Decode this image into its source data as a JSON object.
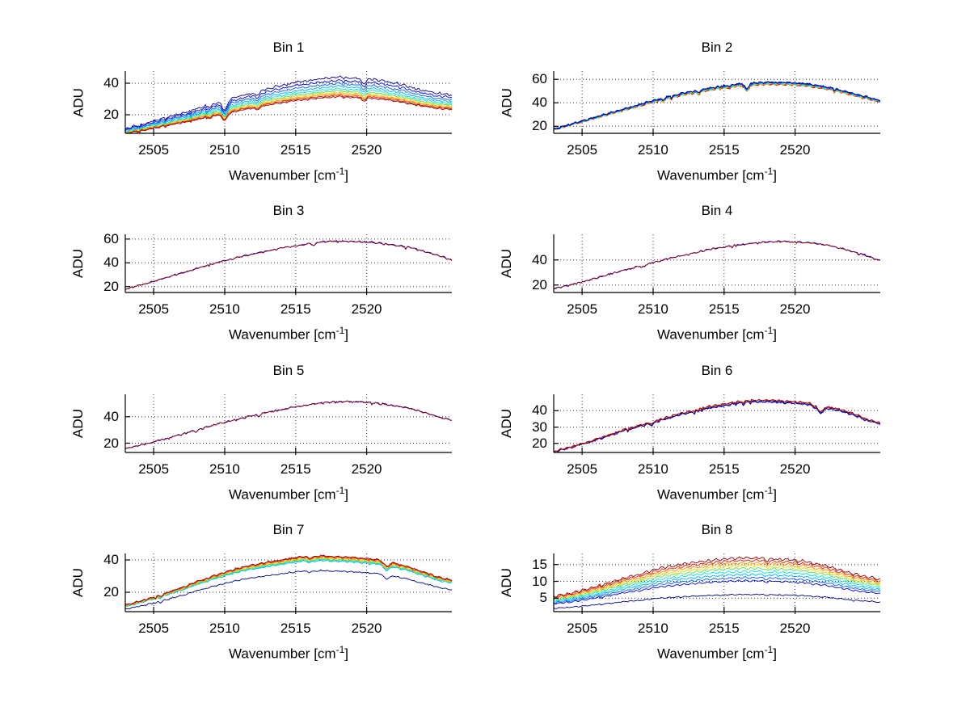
{
  "figure": {
    "background": "#ffffff",
    "grid_layout": {
      "rows": 4,
      "cols": 2
    },
    "grid_style": "dotted black gridlines at every tick, box off (left and bottom spines only)",
    "line_palette_jet": [
      "#00008F",
      "#0000EA",
      "#0060FF",
      "#00B0FF",
      "#00E0E0",
      "#55DD55",
      "#EED500",
      "#FF9000",
      "#F01800",
      "#900000"
    ]
  },
  "labels": {
    "ylabel": "ADU",
    "xlabel_prefix": "Wavenumber [cm",
    "xlabel_sup": "-1",
    "xlabel_suffix": "]"
  },
  "x_values": [
    2503,
    2504,
    2505,
    2506,
    2507,
    2508,
    2509,
    2510,
    2511,
    2512,
    2513,
    2514,
    2515,
    2516,
    2517,
    2518,
    2519,
    2520,
    2521,
    2522,
    2523,
    2524,
    2525,
    2526
  ],
  "chart_data": [
    {
      "type": "line",
      "title": "Bin 1",
      "xlabel": "Wavenumber [cm^-1]",
      "ylabel": "ADU",
      "xlim": [
        2503,
        2526
      ],
      "ylim": [
        8.2,
        47.7
      ],
      "xticks": [
        2505,
        2510,
        2515,
        2520
      ],
      "yticks": [
        20,
        40
      ],
      "base_adu": [
        11,
        13.5,
        16,
        18.5,
        21,
        23.5,
        26.5,
        29,
        31.5,
        34,
        36.5,
        38.5,
        40.5,
        42,
        43,
        44,
        43.5,
        43,
        42,
        40,
        38,
        35.5,
        33.5,
        32.5
      ],
      "noise_amp": 0.8,
      "ripple": {
        "period": 0.5,
        "amp": 0.35
      },
      "dips": [
        {
          "x": 2510,
          "depth": 6,
          "width": 0.18
        },
        {
          "x": 2512.3,
          "depth": 2.5,
          "width": 0.15
        },
        {
          "x": 2519.8,
          "depth": 3,
          "width": 0.15
        },
        {
          "x": 2509,
          "depth": 1.5,
          "width": 0.12
        }
      ],
      "series": [
        {
          "name": "trace-01",
          "color": "#00008F",
          "scale": 1.0
        },
        {
          "name": "trace-02",
          "color": "#0000EA",
          "scale": 0.95
        },
        {
          "name": "trace-03",
          "color": "#0060FF",
          "scale": 0.905
        },
        {
          "name": "trace-04",
          "color": "#00B0FF",
          "scale": 0.865
        },
        {
          "name": "trace-05",
          "color": "#00E0E0",
          "scale": 0.83
        },
        {
          "name": "trace-06",
          "color": "#55DD55",
          "scale": 0.8
        },
        {
          "name": "trace-07",
          "color": "#EED500",
          "scale": 0.775
        },
        {
          "name": "trace-08",
          "color": "#FF9000",
          "scale": 0.755
        },
        {
          "name": "trace-09",
          "color": "#F01800",
          "scale": 0.735
        },
        {
          "name": "trace-10",
          "color": "#900000",
          "scale": 0.715
        }
      ]
    },
    {
      "type": "line",
      "title": "Bin 2",
      "xlabel": "Wavenumber [cm^-1]",
      "ylabel": "ADU",
      "xlim": [
        2503,
        2526
      ],
      "ylim": [
        14,
        67
      ],
      "xticks": [
        2505,
        2510,
        2515,
        2520
      ],
      "yticks": [
        20,
        40,
        60
      ],
      "base_adu": [
        18,
        21,
        24.5,
        28,
        31.5,
        35,
        38.5,
        42,
        45,
        48,
        50.5,
        52.5,
        54.5,
        56,
        57,
        57.5,
        57.5,
        57,
        56,
        54,
        51.5,
        48.5,
        45,
        42
      ],
      "noise_amp": 0.9,
      "ripple": {
        "period": 0.5,
        "amp": 0.4
      },
      "dips": [
        {
          "x": 2516.6,
          "depth": 5,
          "width": 0.12
        },
        {
          "x": 2513.2,
          "depth": 2,
          "width": 0.12
        },
        {
          "x": 2510.7,
          "depth": 1.5,
          "width": 0.1
        }
      ],
      "series": [
        {
          "name": "trace-01",
          "color": "#900000",
          "scale": 0.965
        },
        {
          "name": "trace-02",
          "color": "#F01800",
          "scale": 0.968
        },
        {
          "name": "trace-03",
          "color": "#FF9000",
          "scale": 0.972
        },
        {
          "name": "trace-04",
          "color": "#EED500",
          "scale": 0.976
        },
        {
          "name": "trace-05",
          "color": "#55DD55",
          "scale": 0.98
        },
        {
          "name": "trace-06",
          "color": "#00E0E0",
          "scale": 0.984
        },
        {
          "name": "trace-07",
          "color": "#00B0FF",
          "scale": 0.988
        },
        {
          "name": "trace-08",
          "color": "#0060FF",
          "scale": 0.992
        },
        {
          "name": "trace-09",
          "color": "#0000EA",
          "scale": 0.996
        },
        {
          "name": "trace-10",
          "color": "#00008F",
          "scale": 1.0
        }
      ]
    },
    {
      "type": "line",
      "title": "Bin 3",
      "xlabel": "Wavenumber [cm^-1]",
      "ylabel": "ADU",
      "xlim": [
        2503,
        2526
      ],
      "ylim": [
        15,
        64
      ],
      "xticks": [
        2505,
        2510,
        2515,
        2520
      ],
      "yticks": [
        20,
        40,
        60
      ],
      "base_adu": [
        18,
        21,
        24.5,
        28,
        31.5,
        35,
        38.5,
        42,
        45,
        47.5,
        50,
        52.5,
        54.5,
        56.5,
        58,
        58.5,
        58,
        57.5,
        56.5,
        55,
        53,
        50,
        46.5,
        42.5
      ],
      "noise_amp": 0.8,
      "ripple": {
        "period": 0.5,
        "amp": 0.3
      },
      "dips": [
        {
          "x": 2516.3,
          "depth": 2,
          "width": 0.12
        },
        {
          "x": 2510.5,
          "depth": 1.2,
          "width": 0.1
        }
      ],
      "series": [
        {
          "name": "trace-01",
          "color": "#0000EA",
          "scale": 1.0
        },
        {
          "name": "trace-02",
          "color": "#900000",
          "scale": 0.996
        }
      ]
    },
    {
      "type": "line",
      "title": "Bin 4",
      "xlabel": "Wavenumber [cm^-1]",
      "ylabel": "ADU",
      "xlim": [
        2503,
        2526
      ],
      "ylim": [
        14,
        60.5
      ],
      "xticks": [
        2505,
        2510,
        2515,
        2520
      ],
      "yticks": [
        20,
        40
      ],
      "base_adu": [
        17,
        19.5,
        22.5,
        25.5,
        29,
        32,
        35,
        38,
        41,
        43.5,
        46,
        48.5,
        50.5,
        52,
        53.5,
        54.5,
        55,
        54.5,
        54,
        52.5,
        50,
        47,
        43.5,
        39.5
      ],
      "noise_amp": 0.8,
      "ripple": {
        "period": 0.5,
        "amp": 0.3
      },
      "dips": [
        {
          "x": 2509.3,
          "depth": 1.5,
          "width": 0.12
        }
      ],
      "series": [
        {
          "name": "trace-01",
          "color": "#0000EA",
          "scale": 1.0
        },
        {
          "name": "trace-02",
          "color": "#900000",
          "scale": 0.997
        }
      ]
    },
    {
      "type": "line",
      "title": "Bin 5",
      "xlabel": "Wavenumber [cm^-1]",
      "ylabel": "ADU",
      "xlim": [
        2503,
        2526
      ],
      "ylim": [
        13,
        57
      ],
      "xticks": [
        2505,
        2510,
        2515,
        2520
      ],
      "yticks": [
        20,
        40
      ],
      "base_adu": [
        16,
        18.5,
        21,
        24,
        27,
        30,
        33,
        36,
        38.5,
        41,
        43.5,
        45.5,
        47.5,
        49.5,
        51,
        51.5,
        51.5,
        51,
        50,
        48.5,
        46.5,
        43.5,
        40,
        37.5
      ],
      "noise_amp": 0.7,
      "ripple": {
        "period": 0.5,
        "amp": 0.3
      },
      "dips": [
        {
          "x": 2512.4,
          "depth": 1.5,
          "width": 0.12
        },
        {
          "x": 2508,
          "depth": 1.2,
          "width": 0.1
        }
      ],
      "series": [
        {
          "name": "trace-01",
          "color": "#0000EA",
          "scale": 1.0
        },
        {
          "name": "trace-02",
          "color": "#900000",
          "scale": 0.997
        }
      ]
    },
    {
      "type": "line",
      "title": "Bin 6",
      "xlabel": "Wavenumber [cm^-1]",
      "ylabel": "ADU",
      "xlim": [
        2503,
        2526
      ],
      "ylim": [
        14.5,
        50
      ],
      "xticks": [
        2505,
        2510,
        2515,
        2520
      ],
      "yticks": [
        20,
        30,
        40
      ],
      "base_adu": [
        15,
        17.5,
        20,
        22.5,
        25.5,
        28.5,
        31,
        33.5,
        36,
        38.5,
        40.5,
        42.5,
        44,
        45.5,
        46.5,
        46.5,
        46,
        45.5,
        44.5,
        43,
        41,
        38.5,
        35,
        32.5
      ],
      "noise_amp": 0.7,
      "ripple": {
        "period": 0.5,
        "amp": 0.3
      },
      "dips": [
        {
          "x": 2521.8,
          "depth": 4,
          "width": 0.2
        },
        {
          "x": 2509.9,
          "depth": 1.5,
          "width": 0.12
        }
      ],
      "series": [
        {
          "name": "trace-01",
          "color": "#0000EA",
          "scale": 0.975
        },
        {
          "name": "trace-02",
          "color": "#00008F",
          "scale": 0.982
        },
        {
          "name": "trace-03",
          "color": "#F01800",
          "scale": 0.998
        },
        {
          "name": "trace-04",
          "color": "#900000",
          "scale": 1.0
        }
      ]
    },
    {
      "type": "line",
      "title": "Bin 7",
      "xlabel": "Wavenumber [cm^-1]",
      "ylabel": "ADU",
      "xlim": [
        2503,
        2526
      ],
      "ylim": [
        8,
        44
      ],
      "xticks": [
        2505,
        2510,
        2515,
        2520
      ],
      "yticks": [
        20,
        40
      ],
      "base_adu": [
        12,
        14.5,
        17,
        20,
        23,
        26.5,
        29.5,
        32.5,
        35,
        37,
        38.5,
        40,
        41.5,
        42.5,
        42.5,
        42,
        41.5,
        41,
        40,
        38,
        35.5,
        32.5,
        29.5,
        27.5
      ],
      "noise_amp": 0.6,
      "ripple": {
        "period": 0.55,
        "amp": 0.3
      },
      "dips": [
        {
          "x": 2521.4,
          "depth": 3,
          "width": 0.2
        },
        {
          "x": 2516,
          "depth": 1.5,
          "width": 0.12
        },
        {
          "x": 2505.5,
          "depth": 1,
          "width": 0.1
        }
      ],
      "series": [
        {
          "name": "trace-01",
          "color": "#00008F",
          "scale": 0.785
        },
        {
          "name": "trace-02",
          "color": "#00B0FF",
          "scale": 0.93
        },
        {
          "name": "trace-03",
          "color": "#00E0E0",
          "scale": 0.942
        },
        {
          "name": "trace-04",
          "color": "#55DD55",
          "scale": 0.954
        },
        {
          "name": "trace-05",
          "color": "#EED500",
          "scale": 0.966
        },
        {
          "name": "trace-06",
          "color": "#FF9000",
          "scale": 0.978
        },
        {
          "name": "trace-07",
          "color": "#F01800",
          "scale": 0.99
        },
        {
          "name": "trace-08",
          "color": "#900000",
          "scale": 1.0
        }
      ]
    },
    {
      "type": "line",
      "title": "Bin 8",
      "xlabel": "Wavenumber [cm^-1]",
      "ylabel": "ADU",
      "xlim": [
        2503,
        2526
      ],
      "ylim": [
        1,
        18.3
      ],
      "xticks": [
        2505,
        2510,
        2515,
        2520
      ],
      "yticks": [
        5,
        10,
        15
      ],
      "base_adu": [
        5.5,
        6.3,
        7.3,
        8.4,
        9.7,
        11,
        12.3,
        13.4,
        14.3,
        15,
        15.7,
        16.2,
        16.6,
        16.9,
        17,
        16.9,
        16.6,
        16.3,
        15.7,
        14.8,
        13.6,
        12.4,
        11.3,
        10.6
      ],
      "noise_amp": 0.32,
      "ripple": {
        "period": 0.55,
        "amp": 0.3
      },
      "dips": [
        {
          "x": 2518,
          "depth": 0.8,
          "width": 0.12
        },
        {
          "x": 2509,
          "depth": 0.6,
          "width": 0.1
        }
      ],
      "series": [
        {
          "name": "trace-01",
          "color": "#00008F",
          "scale": 0.36
        },
        {
          "name": "trace-02",
          "color": "#0000EA",
          "scale": 0.6
        },
        {
          "name": "trace-03",
          "color": "#0060FF",
          "scale": 0.655
        },
        {
          "name": "trace-04",
          "color": "#00B0FF",
          "scale": 0.71
        },
        {
          "name": "trace-05",
          "color": "#00E0E0",
          "scale": 0.765
        },
        {
          "name": "trace-06",
          "color": "#55DD55",
          "scale": 0.82
        },
        {
          "name": "trace-07",
          "color": "#EED500",
          "scale": 0.865
        },
        {
          "name": "trace-08",
          "color": "#FF9000",
          "scale": 0.91
        },
        {
          "name": "trace-09",
          "color": "#F01800",
          "scale": 0.955
        },
        {
          "name": "trace-10",
          "color": "#900000",
          "scale": 1.0
        }
      ]
    }
  ]
}
